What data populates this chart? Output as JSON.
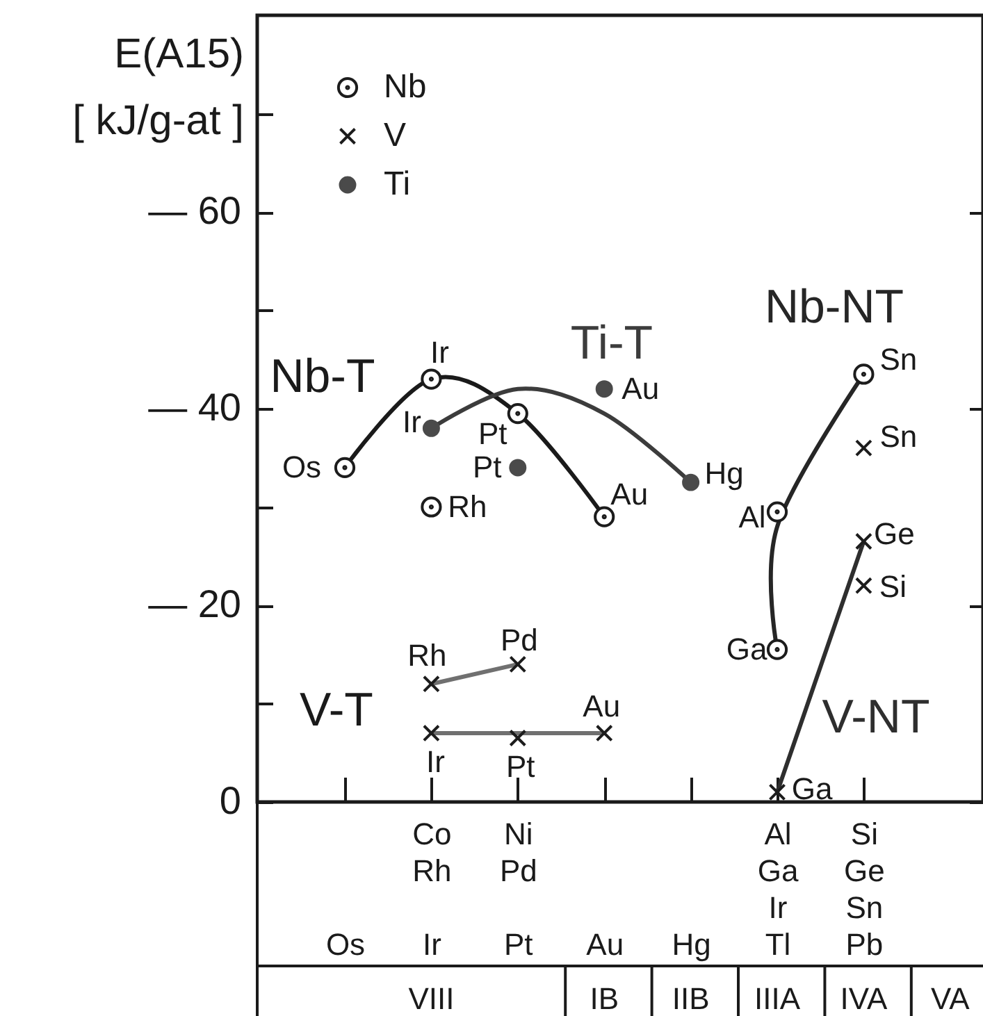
{
  "chart_data": {
    "type": "scatter",
    "ylabel": "E(A15)\n[ kJ/g-at ]",
    "categories": [
      "Os",
      "Co\nRh\n\nIr",
      "Ni\nPd\n\nPt",
      "Au",
      "Hg",
      "Al\nGa\nIr\nTl",
      "Si\nGe\nSn\nPb"
    ],
    "ylim": [
      0,
      -80
    ],
    "yticks": [
      0,
      {
        "value": -10,
        "label": null
      },
      {
        "value": -20,
        "label": "— 20"
      },
      {
        "value": -30,
        "label": null
      },
      {
        "value": -40,
        "label": "— 40"
      },
      {
        "value": -50,
        "label": null
      },
      {
        "value": -60,
        "label": "— 60"
      },
      {
        "value": -70,
        "label": null
      }
    ],
    "legend": "top left",
    "series": [
      {
        "name": "Nb",
        "marker": "circle",
        "color": "#1c1c1c",
        "x": [
          "Os",
          "Co\nRh\n\nIr",
          "Co\nRh\n\nIr",
          "Ni\nPd\n\nPt",
          "Au",
          "Al\nGa\nIr\nTl",
          "Al\nGa\nIr\nTl",
          "Si\nGe\nSn\nPb"
        ],
        "values": [
          -34,
          -43,
          -30,
          -39.5,
          -29,
          -29.5,
          -15.5,
          -43.5
        ]
      },
      {
        "name": "V",
        "marker": "cross",
        "color": "#1c1c1c",
        "x": [
          "Co\nRh\n\nIr",
          "Ni\nPd\n\nPt",
          "Co\nRh\n\nIr",
          "Ni\nPd\n\nPt",
          "Au",
          "Al\nGa\nIr\nTl",
          "Si\nGe\nSn\nPb",
          "Si\nGe\nSn\nPb",
          "Si\nGe\nSn\nPb"
        ],
        "values": [
          -12,
          -14,
          -7,
          -6.5,
          -7,
          -1,
          -26.5,
          -22,
          -36
        ]
      },
      {
        "name": "Ti",
        "marker": "circle",
        "color": "#4a4a4a",
        "x": [
          "Co\nRh\n\nIr",
          "Ni\nPd\n\nPt",
          "Au",
          "Hg"
        ],
        "values": [
          -38,
          -34,
          -42,
          -32.5
        ]
      },
      {
        "name": "Nb-T",
        "type": "line",
        "color": "#1a1a1a",
        "x": [
          "Os",
          "Co\nRh\n\nIr",
          "Ni\nPd\n\nPt",
          "Au"
        ],
        "values": [
          -34,
          -43,
          -39.5,
          -29
        ]
      },
      {
        "name": "Ti-T",
        "type": "line",
        "color": "#3c3c3c",
        "x": [
          "Co\nRh\n\nIr",
          "Ni\nPd\n\nPt",
          "Au",
          "Hg"
        ],
        "values": [
          -38,
          -42,
          -39.5,
          -32.5
        ]
      },
      {
        "type": "line",
        "color": "#707070",
        "x": [
          "Co\nRh\n\nIr",
          "Ni\nPd\n\nPt"
        ],
        "values": [
          -12,
          -14
        ]
      },
      {
        "type": "line",
        "color": "#707070",
        "x": [
          "Co\nRh\n\nIr",
          "Ni\nPd\n\nPt",
          "Au"
        ],
        "values": [
          -7,
          -7,
          -7
        ]
      },
      {
        "name": "Nb-NT",
        "type": "line",
        "color": "#262626",
        "x": [
          "Al\nGa\nIr\nTl",
          "Al\nGa\nIr\nTl",
          "Si\nGe\nSn\nPb"
        ],
        "values": [
          -15.5,
          -28,
          -43.5
        ]
      },
      {
        "name": "V-NT",
        "type": "line",
        "color": "#2e2e2e",
        "x": [
          "Al\nGa\nIr\nTl",
          "Si\nGe\nSn\nPb"
        ],
        "values": [
          -1,
          -26.5
        ]
      }
    ],
    "annotations": [
      {
        "text": "Os",
        "x": "Os",
        "y": -34
      },
      {
        "text": "Ir",
        "x": "Co\nRh\n\nIr",
        "y": -43
      },
      {
        "text": "Rh",
        "x": "Co\nRh\n\nIr",
        "y": -30
      },
      {
        "text": "Pt",
        "x": "Ni\nPd\n\nPt",
        "y": -39.5
      },
      {
        "text": "Au",
        "x": "Au",
        "y": -29
      },
      {
        "text": "Al",
        "x": "Al\nGa\nIr\nTl",
        "y": -29.5
      },
      {
        "text": "Ga",
        "x": "Al\nGa\nIr\nTl",
        "y": -15.5
      },
      {
        "text": "Sn",
        "x": "Si\nGe\nSn\nPb",
        "y": -43.5
      },
      {
        "text": "Rh",
        "x": "Co\nRh\n\nIr",
        "y": -12
      },
      {
        "text": "Pd",
        "x": "Ni\nPd\n\nPt",
        "y": -14
      },
      {
        "text": "Ir",
        "x": "Co\nRh\n\nIr",
        "y": -7
      },
      {
        "text": "Pt",
        "x": "Ni\nPd\n\nPt",
        "y": -6.5
      },
      {
        "text": "Au",
        "x": "Au",
        "y": -7
      },
      {
        "text": "Ga",
        "x": "Al\nGa\nIr\nTl",
        "y": -1
      },
      {
        "text": "Ge",
        "x": "Si\nGe\nSn\nPb",
        "y": -26.5
      },
      {
        "text": "Si",
        "x": "Si\nGe\nSn\nPb",
        "y": -22
      },
      {
        "text": "Sn",
        "x": "Si\nGe\nSn\nPb",
        "y": -36
      },
      {
        "text": "Ir",
        "x": "Co\nRh\n\nIr",
        "y": -38
      },
      {
        "text": "Pt",
        "x": "Ni\nPd\n\nPt",
        "y": -34
      },
      {
        "text": "Au",
        "x": "Au",
        "y": -42
      },
      {
        "text": "Hg",
        "x": "Hg",
        "y": -32.5
      },
      "V-T",
      "VIII",
      "IB",
      "IIB",
      "IIIA",
      "IVA",
      "VA"
    ]
  }
}
